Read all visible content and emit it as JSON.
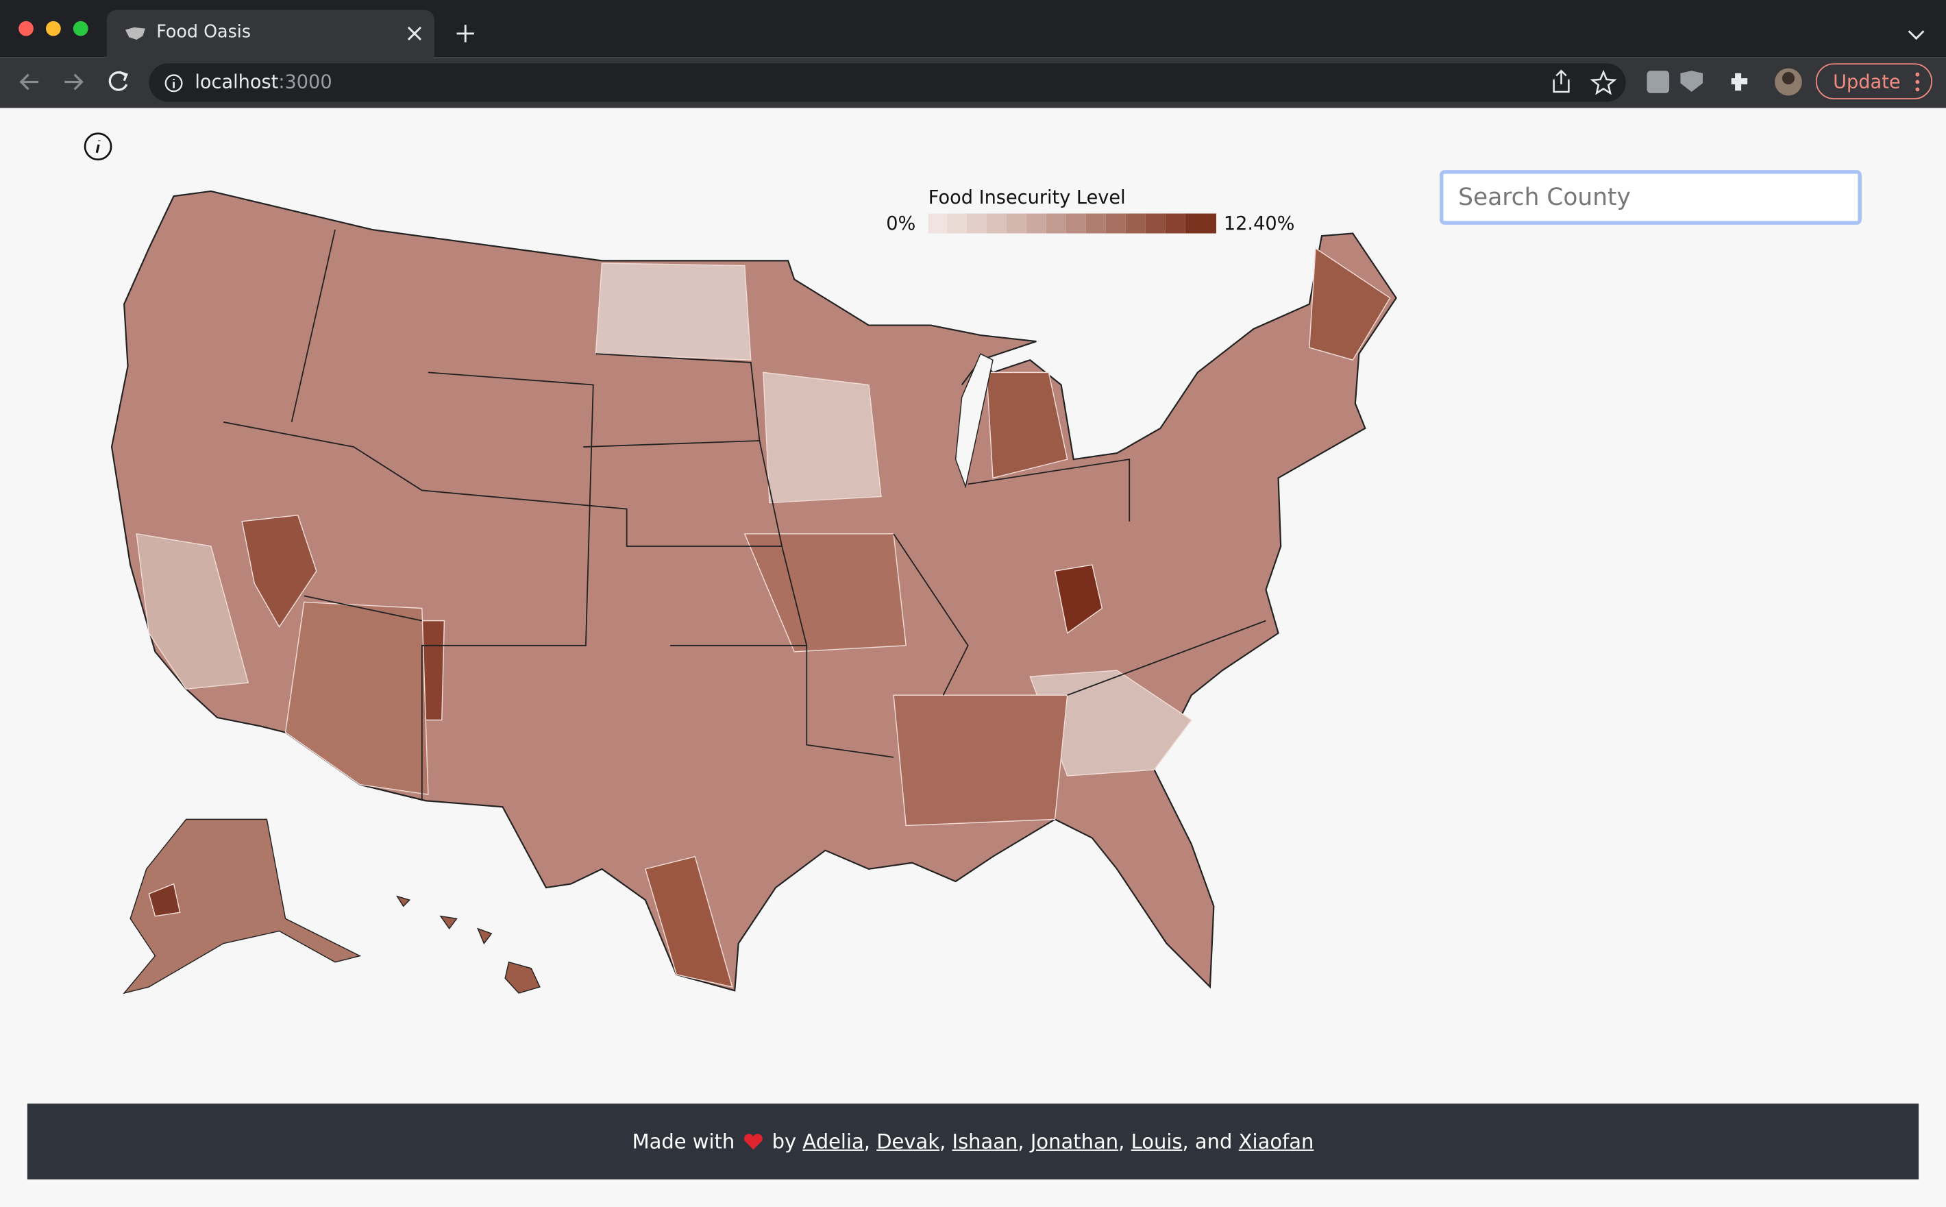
{
  "browser": {
    "tab": {
      "title": "Food Oasis"
    },
    "url": {
      "host": "localhost",
      "port": ":3000"
    },
    "update_button": "Update"
  },
  "legend": {
    "title": "Food Insecurity Level",
    "min_label": "0%",
    "max_label": "12.40%"
  },
  "search": {
    "placeholder": "Search County"
  },
  "footer": {
    "prefix": "Made with",
    "by": "by",
    "separator": ",",
    "authors": [
      "Adelia",
      "Devak",
      "Ishaan",
      "Jonathan",
      "Louis"
    ],
    "and": "and",
    "last_author": "Xiaofan"
  }
}
